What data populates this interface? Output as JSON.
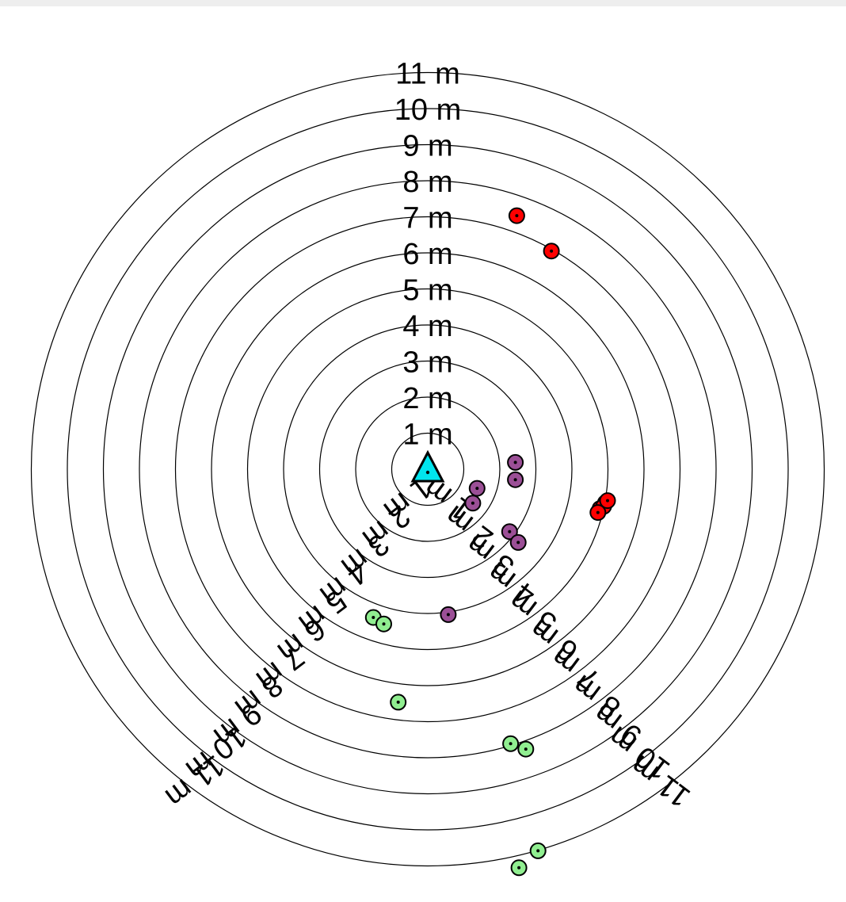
{
  "chart_data": {
    "type": "scatter",
    "title": "",
    "rings": [
      {
        "r": 1,
        "label": "1 m"
      },
      {
        "r": 2,
        "label": "2 m"
      },
      {
        "r": 3,
        "label": "3 m"
      },
      {
        "r": 4,
        "label": "4 m"
      },
      {
        "r": 5,
        "label": "5 m"
      },
      {
        "r": 6,
        "label": "6 m"
      },
      {
        "r": 7,
        "label": "7 m"
      },
      {
        "r": 8,
        "label": "8 m"
      },
      {
        "r": 9,
        "label": "9 m"
      },
      {
        "r": 10,
        "label": "10 m"
      },
      {
        "r": 11,
        "label": "11 m"
      }
    ],
    "center_marker": {
      "shape": "triangle",
      "color": "#00e5ee"
    },
    "series": [
      {
        "color": "#ff0000",
        "points": [
          {
            "x": 2.47,
            "y": 7.03
          },
          {
            "x": 3.43,
            "y": 6.05
          },
          {
            "x": 4.78,
            "y": -1.09
          },
          {
            "x": 4.93,
            "y": -0.93
          },
          {
            "x": 4.88,
            "y": -1.03
          },
          {
            "x": 4.72,
            "y": -1.2
          },
          {
            "x": 4.99,
            "y": -0.87
          }
        ]
      },
      {
        "color": "#9b4f96",
        "points": [
          {
            "x": 2.43,
            "y": 0.19
          },
          {
            "x": 2.43,
            "y": -0.29
          },
          {
            "x": 1.37,
            "y": -0.53
          },
          {
            "x": 1.25,
            "y": -0.94
          },
          {
            "x": 2.27,
            "y": -1.73
          },
          {
            "x": 2.51,
            "y": -2.03
          },
          {
            "x": 0.57,
            "y": -4.03
          }
        ]
      },
      {
        "color": "#90ee90",
        "points": [
          {
            "x": -1.51,
            "y": -4.11
          },
          {
            "x": -1.22,
            "y": -4.29
          },
          {
            "x": -0.82,
            "y": -6.46
          },
          {
            "x": 2.3,
            "y": -7.61
          },
          {
            "x": 2.72,
            "y": -7.76
          },
          {
            "x": 3.06,
            "y": -10.58
          },
          {
            "x": 2.53,
            "y": -11.05
          }
        ]
      }
    ]
  }
}
